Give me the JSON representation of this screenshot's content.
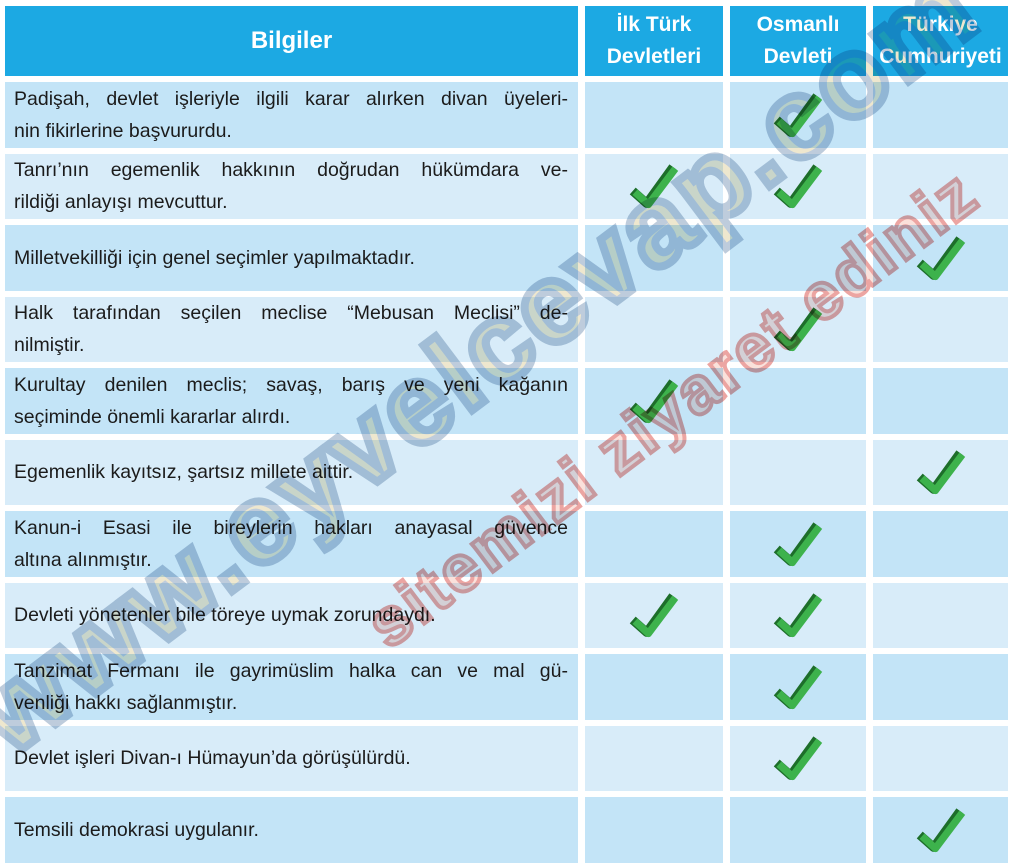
{
  "colors": {
    "header_bg": "#1ca9e3",
    "header_text": "#ffffff",
    "row_dark": "#c3e4f7",
    "row_light": "#d8ecf9",
    "body_text": "#1b1b1b",
    "check_green": "#3db24c",
    "check_shadow": "#1d6e2a",
    "watermark_primary_fill": "#e3d7ae",
    "watermark_primary_outline": "#93aac4",
    "watermark_secondary_fill": "#f6c9bd",
    "watermark_secondary_outline": "#dd5a55"
  },
  "table": {
    "headers": [
      {
        "label": "Bilgiler"
      },
      {
        "label": "İlk Türk Devletleri"
      },
      {
        "label": "Osmanlı Devleti"
      },
      {
        "label": "Türkiye Cumhuriyeti"
      }
    ],
    "rows": [
      {
        "lines": [
          "Padişah, devlet işleriyle ilgili karar alırken divan üyeleri-",
          "nin fikirlerine başvururdu."
        ],
        "checks": [
          false,
          true,
          false
        ]
      },
      {
        "lines": [
          "Tanrı’nın egemenlik hakkının doğrudan hükümdara ve-",
          "rildiği anlayışı mevcuttur."
        ],
        "checks": [
          true,
          true,
          false
        ]
      },
      {
        "lines": [
          "Milletvekilliği için genel seçimler yapılmaktadır."
        ],
        "checks": [
          false,
          false,
          true
        ]
      },
      {
        "lines": [
          "Halk tarafından seçilen meclise “Mebusan Meclisi” de-",
          "nilmiştir."
        ],
        "checks": [
          false,
          true,
          false
        ]
      },
      {
        "lines": [
          "Kurultay denilen meclis; savaş, barış ve yeni kağanın",
          "seçiminde önemli kararlar alırdı."
        ],
        "checks": [
          true,
          false,
          false
        ]
      },
      {
        "lines": [
          "Egemenlik kayıtsız, şartsız millete aittir."
        ],
        "checks": [
          false,
          false,
          true
        ]
      },
      {
        "lines": [
          "Kanun-i Esasi ile bireylerin hakları anayasal güvence",
          "altına alınmıştır."
        ],
        "checks": [
          false,
          true,
          false
        ]
      },
      {
        "lines": [
          "Devleti yönetenler bile töreye uymak zorundaydı."
        ],
        "checks": [
          true,
          true,
          false
        ]
      },
      {
        "lines": [
          "Tanzimat Fermanı ile gayrimüslim halka can ve mal gü-",
          "venliği hakkı sağlanmıştır."
        ],
        "checks": [
          false,
          true,
          false
        ]
      },
      {
        "lines": [
          "Devlet işleri Divan-ı Hümayun’da görüşülürdü."
        ],
        "checks": [
          false,
          true,
          false
        ]
      },
      {
        "lines": [
          "Temsili demokrasi uygulanır."
        ],
        "checks": [
          false,
          false,
          true
        ]
      }
    ]
  },
  "watermark": {
    "primary_text": "www.eyvelcevap.com",
    "secondary_text": "sitemizi ziyaret ediniz"
  }
}
